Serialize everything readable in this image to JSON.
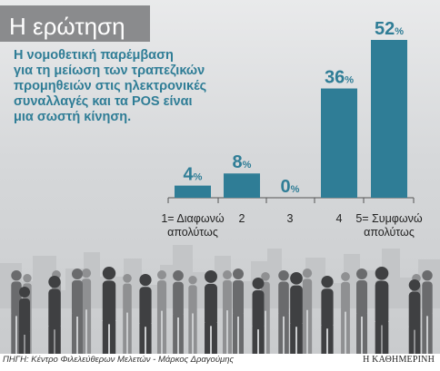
{
  "title": "Η ερώτηση",
  "question": "Η νομοθετική παρέμβαση\nγια τη μείωση των τραπεζικών\nπρομηθειών στις ηλεκτρονικές\nσυναλλαγές και τα POS είναι\nμια σωστή κίνηση.",
  "source": "ΠΗΓΗ: Κέντρο Φιλελεύθερων Μελετών - Μάρκος Δραγούμης",
  "logo": "Η ΚΑΘΗΜΕΡΙΝΗ",
  "colors": {
    "bar": "#2f7d96",
    "title_box": "#8a8b8d",
    "question_text": "#2f7d96",
    "crowd": "#4a4a4a"
  },
  "chart_data": {
    "type": "bar",
    "categories": [
      "1= Διαφωνώ απολύτως",
      "2",
      "3",
      "4",
      "5= Συμφωνώ απολύτως"
    ],
    "category_lines": [
      [
        "1= Διαφωνώ",
        "απολύτως"
      ],
      [
        "2"
      ],
      [
        "3"
      ],
      [
        "4"
      ],
      [
        "5= Συμφωνώ",
        "απολύτως"
      ]
    ],
    "values": [
      4,
      8,
      0,
      36,
      52
    ],
    "unit": "%",
    "value_labels": [
      "4",
      "8",
      "0",
      "36",
      "52"
    ],
    "ylim": [
      0,
      52
    ],
    "grid": false
  }
}
